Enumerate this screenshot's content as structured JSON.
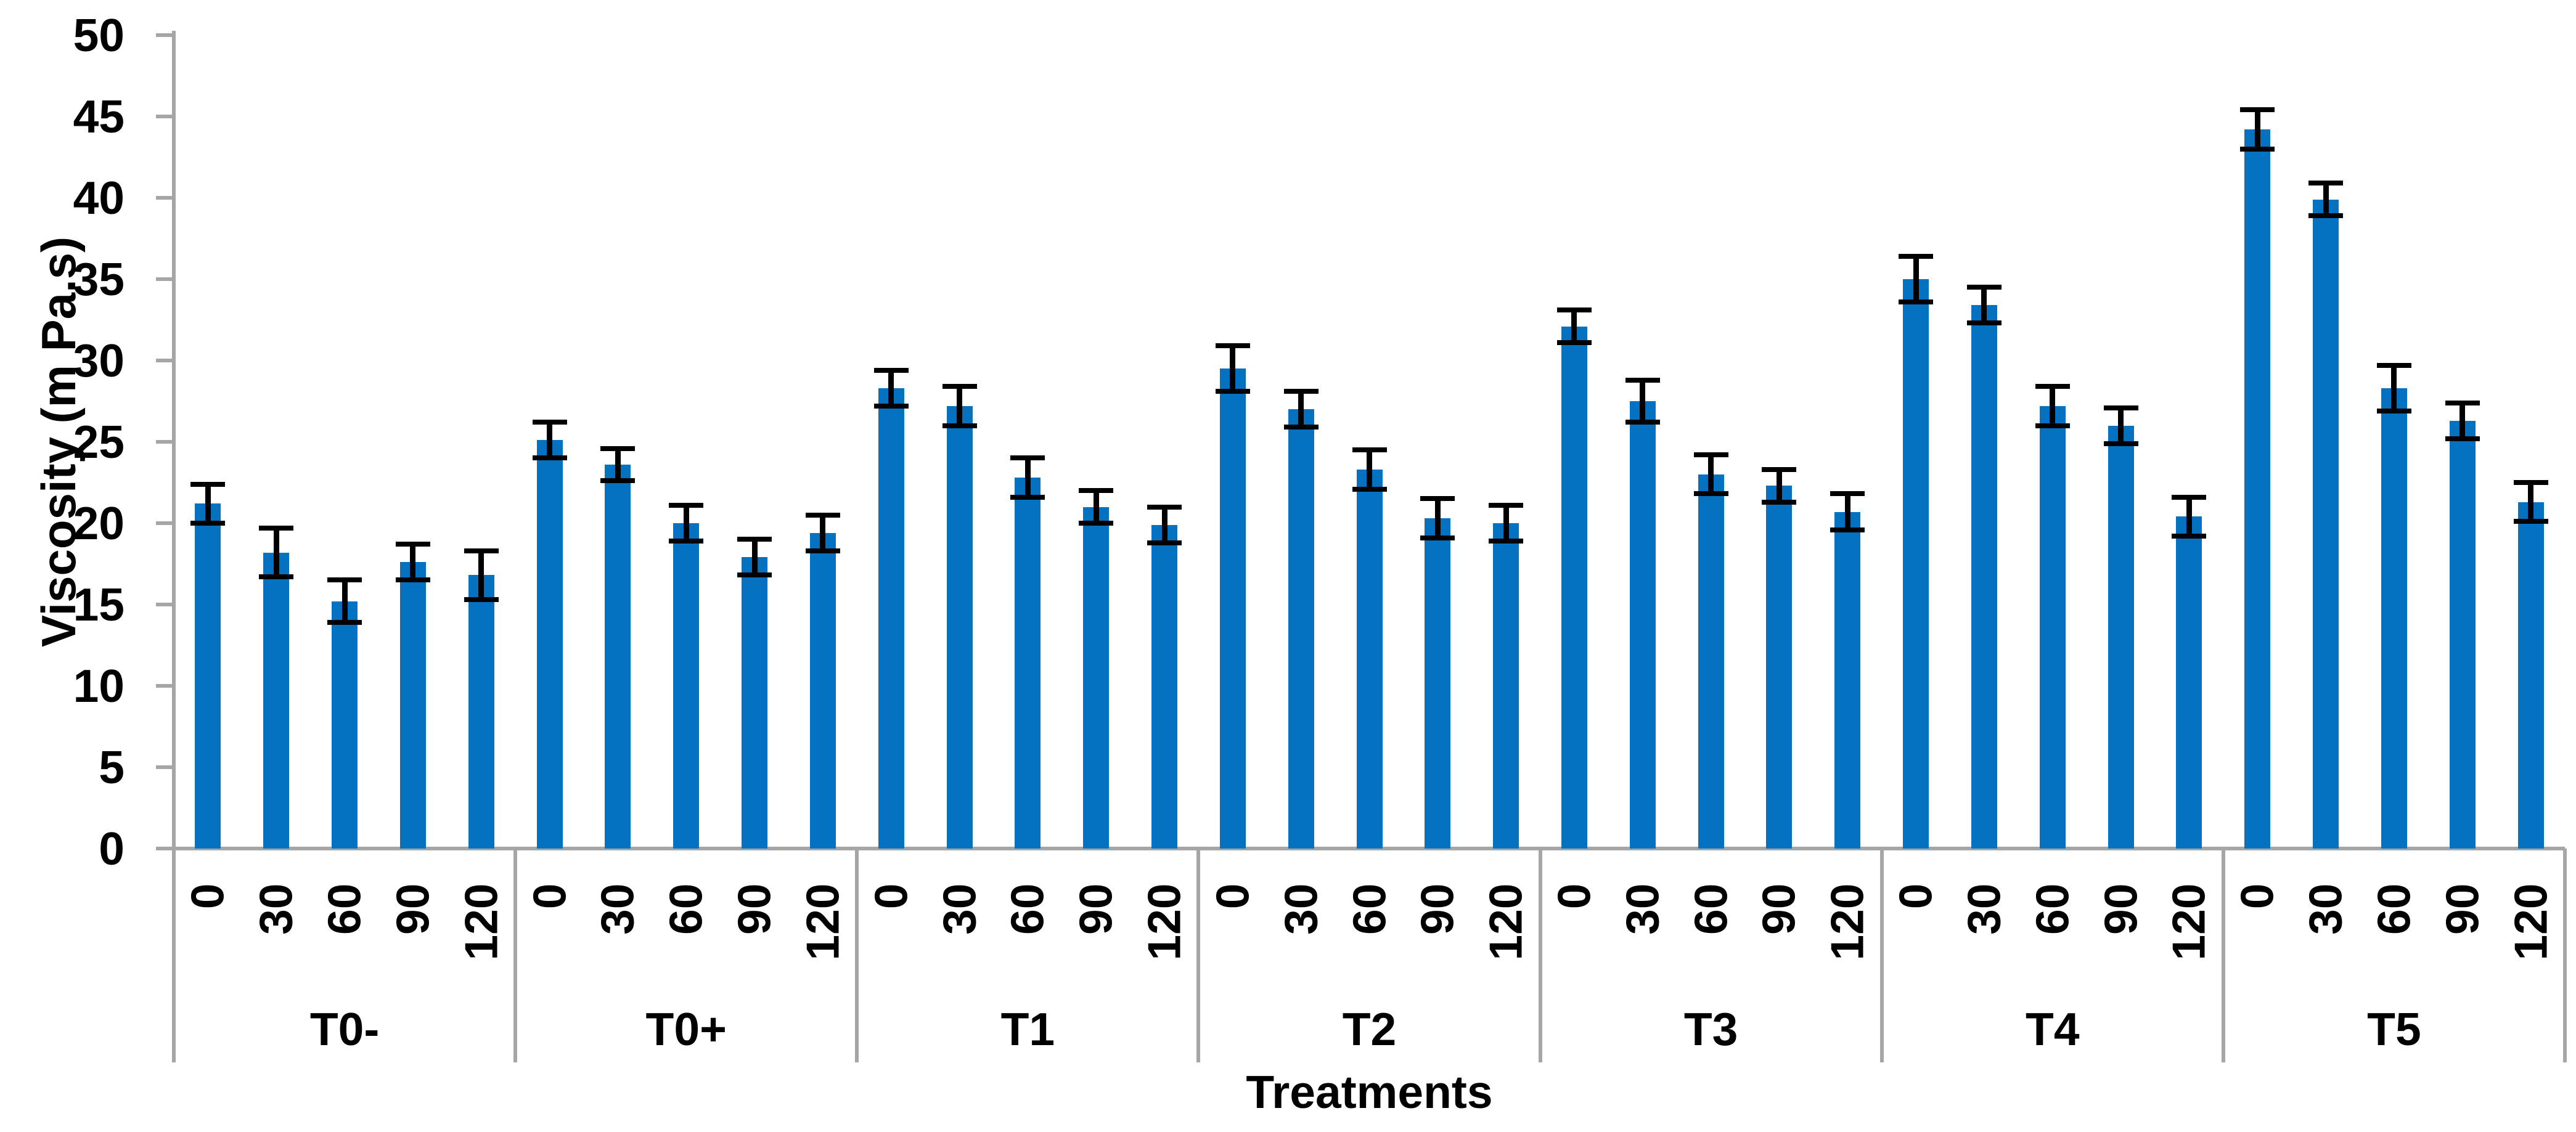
{
  "chart_data": {
    "type": "bar",
    "title": "",
    "xlabel": "Treatments",
    "ylabel": "Viscosity (m Pa.s)",
    "ylim": [
      0,
      50
    ],
    "ytick_step": 5,
    "ytick_labels": [
      "0",
      "5",
      "10",
      "15",
      "20",
      "25",
      "30",
      "35",
      "40",
      "45",
      "50"
    ],
    "grid": false,
    "legend": "none",
    "error_bars": true,
    "bar_color": "#0571C1",
    "error_bar_color": "#000000",
    "axis_color": "#A6A6A6",
    "text_color": "#000000",
    "background_color": "#FFFFFF",
    "categories_per_group": [
      "0",
      "30",
      "60",
      "90",
      "120"
    ],
    "groups": [
      {
        "label": "T0-",
        "categories": [
          "0",
          "30",
          "60",
          "90",
          "120"
        ],
        "values": [
          21.2,
          18.2,
          15.2,
          17.6,
          16.8
        ],
        "errors": [
          1.2,
          1.5,
          1.3,
          1.1,
          1.5
        ]
      },
      {
        "label": "T0+",
        "categories": [
          "0",
          "30",
          "60",
          "90",
          "120"
        ],
        "values": [
          25.1,
          23.6,
          20.0,
          17.9,
          19.4
        ],
        "errors": [
          1.1,
          1.0,
          1.1,
          1.1,
          1.1
        ]
      },
      {
        "label": "T1",
        "categories": [
          "0",
          "30",
          "60",
          "90",
          "120"
        ],
        "values": [
          28.3,
          27.2,
          22.8,
          21.0,
          19.9
        ],
        "errors": [
          1.1,
          1.2,
          1.2,
          1.0,
          1.1
        ]
      },
      {
        "label": "T2",
        "categories": [
          "0",
          "30",
          "60",
          "90",
          "120"
        ],
        "values": [
          29.5,
          27.0,
          23.3,
          20.3,
          20.0
        ],
        "errors": [
          1.4,
          1.1,
          1.2,
          1.2,
          1.1
        ]
      },
      {
        "label": "T3",
        "categories": [
          "0",
          "30",
          "60",
          "90",
          "120"
        ],
        "values": [
          32.1,
          27.5,
          23.0,
          22.3,
          20.7
        ],
        "errors": [
          1.0,
          1.3,
          1.2,
          1.0,
          1.1
        ]
      },
      {
        "label": "T4",
        "categories": [
          "0",
          "30",
          "60",
          "90",
          "120"
        ],
        "values": [
          35.0,
          33.4,
          27.2,
          26.0,
          20.4
        ],
        "errors": [
          1.4,
          1.1,
          1.2,
          1.1,
          1.2
        ]
      },
      {
        "label": "T5",
        "categories": [
          "0",
          "30",
          "60",
          "90",
          "120"
        ],
        "values": [
          44.2,
          39.9,
          28.3,
          26.3,
          21.3
        ],
        "errors": [
          1.2,
          1.0,
          1.4,
          1.1,
          1.2
        ]
      }
    ]
  }
}
